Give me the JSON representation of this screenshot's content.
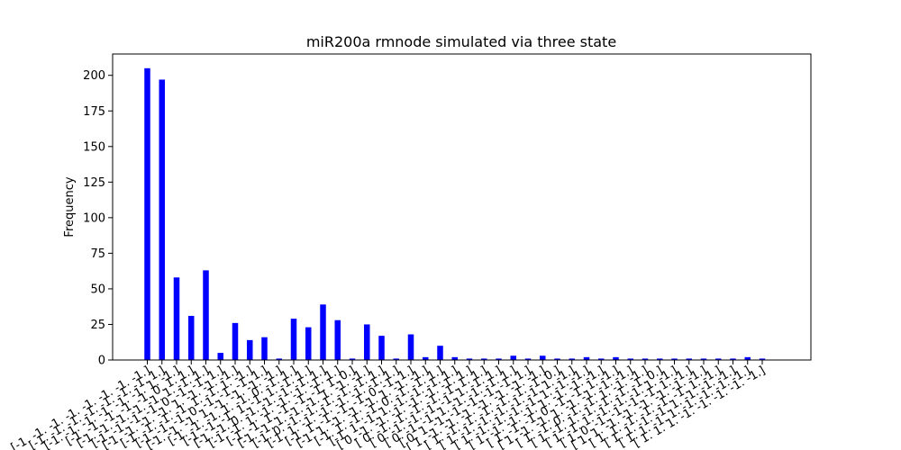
{
  "chart_data": {
    "type": "bar",
    "title": "miR200a rmnode simulated via three state",
    "xlabel": "",
    "ylabel": "Frequency",
    "ylim": [
      0,
      215
    ],
    "yticks": [
      0,
      25,
      50,
      75,
      100,
      125,
      150,
      175,
      200
    ],
    "grid": false,
    "bar_color": "#0000ff",
    "categories": [
      "[-1. -1. -1. -1. -1. -1. -1. -1.]",
      "[-1. -1. -1. -1. -1. -1. -1.  1.]",
      "[-1. -1. -1. -1. -1. -1.  1. -1.]",
      "[-1. -1. -1. -1. -1.  0.  1.  1.]",
      "[-1. -1. -1. -1. -1.  1. -1.  1.]",
      "[-1. -1. -1. -1.  0. -1. -1.  1.]",
      "[-1. -1. -1. -1.  1. -1. -1. -1.]",
      "[-1. -1. -1. -1.  1. -1.  1. -1.]",
      "[-1. -1. -1.  0. -1. -1. -1.  1.]",
      "[-1. -1. -1.  1. -1. -1. -1. -1.]",
      "[-1. -1. -1.  1. -1.  0. -1.  1.]",
      "[-1. -1. -1.  1. -1.  1. -1.  1.]",
      "[-1. -1.  0. -1. -1. -1. -1.  1.]",
      "[-1. -1.  1. -1. -1. -1. -1.  1.]",
      "[-1. -1.  1. -1. -1. -1.  1.  0.]",
      "[-1. -1.  1. -1. -1.  1. -1. -1.]",
      "[-1.  0. -1. -1. -1. -1. -1.  1.]",
      "[-1.  1. -1. -1. -1. -1. -1.  1.]",
      "[-1.  1. -1. -1. -1.  0. -1.  1.]",
      "[-1.  1. -1. -1. -1.  1. -1. -1.]",
      "[-1.  1. -1. -1.  0. -1. -1.  1.]",
      "[-1.  1. -1.  1. -1. -1. -1.  1.]",
      "[ 0. -1. -1. -1. -1. -1. -1.  1.]",
      "[ 0. -1. -1. -1. -1. -1.  1.  1.]",
      "[ 0. -1. -1. -1. -1.  1. -1.  1.]",
      "[ 0. -1. -1.  1. -1. -1. -1.  1.]",
      "[ 0.  1. -1. -1. -1. -1. -1.  1.]",
      "[ 1. -1. -1. -1. -1. -1. -1. -1.]",
      "[ 1. -1. -1. -1. -1. -1. -1.  0.]",
      "[ 1. -1. -1. -1. -1. -1.  1. -1.]",
      "[ 1. -1. -1. -1. -1.  1. -1. -1.]",
      "[ 1. -1. -1. -1.  1. -1. -1. -1.]",
      "[ 1. -1. -1.  0. -1. -1.  1. -1.]",
      "[ 1. -1. -1.  1. -1. -1. -1. -1.]",
      "[ 1. -1.  0. -1. -1.  1. -1. -1.]",
      "[ 1. -1.  1. -1. -1. -1. -1.  0.]",
      "[ 1. -1.  1. -1. -1. -1.  1. -1.]",
      "[ 1.  0. -1. -1. -1. -1.  1. -1.]",
      "[ 1.  1. -1. -1. -1. -1. -1. -1.]",
      "[ 1.  1. -1. -1. -1. -1.  1. -1.]",
      "[ 1.  1. -1. -1.  1. -1. -1. -1.]",
      "[ 1.  1. -1.  1. -1. -1. -1. -1.]",
      "[ 1.  1.  1. -1. -1. -1. -1. -1.]"
    ],
    "values": [
      205,
      197,
      58,
      31,
      63,
      5,
      26,
      14,
      16,
      1,
      29,
      23,
      39,
      28,
      1,
      25,
      17,
      1,
      18,
      2,
      10,
      2,
      1,
      1,
      1,
      3,
      1,
      3,
      1,
      1,
      2,
      1,
      2,
      1,
      1,
      1,
      1,
      1,
      1,
      1,
      1,
      2,
      1
    ]
  }
}
